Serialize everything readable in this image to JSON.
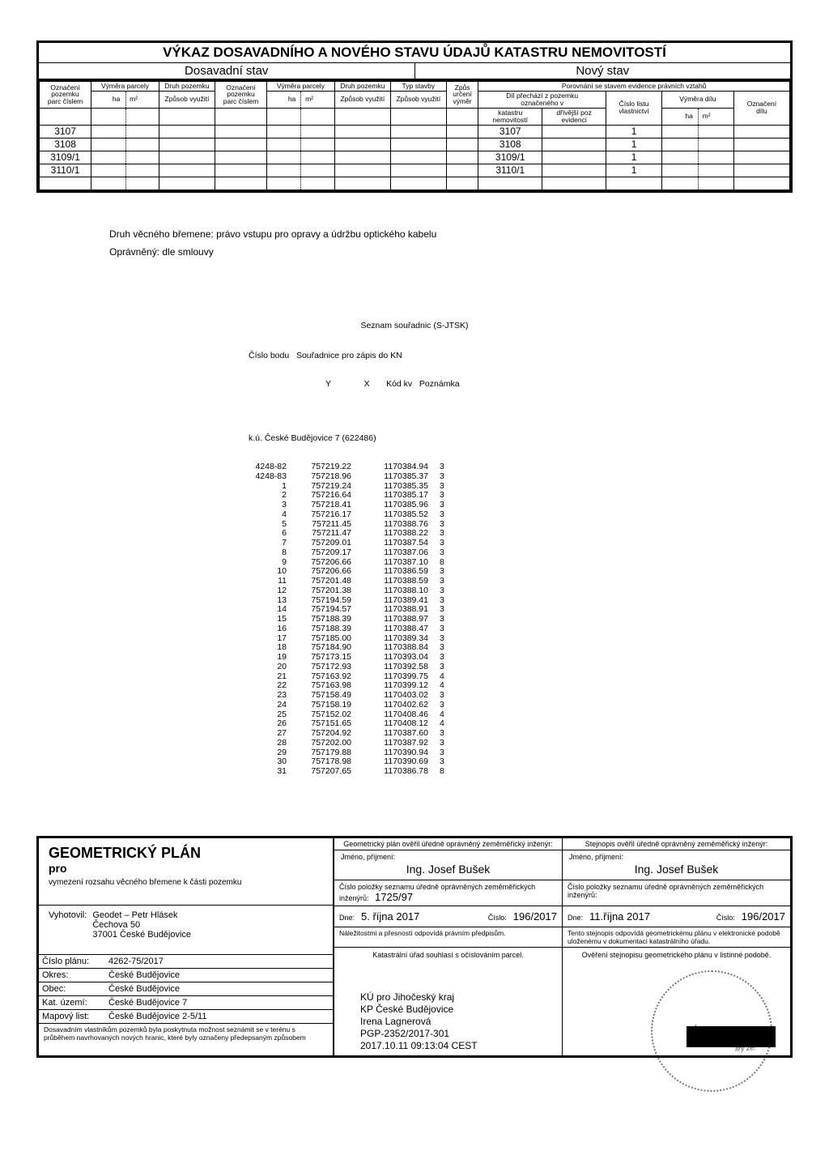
{
  "title": "VÝKAZ DOSAVADNÍHO A NOVÉHO STAVU ÚDAJŮ KATASTRU NEMOVITOSTÍ",
  "state_old": "Dosavadní stav",
  "state_new": "Nový stav",
  "hdr": {
    "oznaceni_pozemku": "Označení\npozemku\nparc číslem",
    "vymera_parcely": "Výměra parcely",
    "druh_pozemku": "Druh pozemku",
    "zpusob_vyuziti": "Způsob využití",
    "typ_stavby": "Typ stavby",
    "zpus_urceni": "Způs\nurčení\nvýměr",
    "porovnani": "Porovnání se stavem evidence právních vztahů",
    "dil_prechazi": "Díl přechází z pozemku\noznačeného v",
    "cislo_listu": "Číslo listu\nvlastnictví",
    "vymera_dilu": "Výměra dílu",
    "oznaceni_dilu": "Označení\ndílu",
    "katastru": "katastru\nnemovitostí",
    "drivejsi": "dřívější poz\nevidenci",
    "ha": "ha",
    "m2": "m²"
  },
  "rows_left": [
    "3107",
    "3108",
    "3109/1",
    "3110/1"
  ],
  "rows_right": [
    {
      "parc": "3107",
      "lv": "1"
    },
    {
      "parc": "3108",
      "lv": "1"
    },
    {
      "parc": "3109/1",
      "lv": "1"
    },
    {
      "parc": "3110/1",
      "lv": "1"
    }
  ],
  "easement1": "Druh věcného břemene:  právo vstupu pro opravy a údržbu optického kabelu",
  "easement2": "Oprávněný:  dle smlouvy",
  "coords_title": "Seznam souřadnic (S-JTSK)",
  "coords_sub": "Číslo bodu   Souřadnice pro zápis do KN",
  "coords_yxk": "Y              X       Kód kv   Poznámka",
  "ku_line": "k.ú. České Budějovice 7 (622486)",
  "coords": [
    [
      "4248-82",
      "757219.22",
      "1170384.94",
      "3"
    ],
    [
      "4248-83",
      "757218.96",
      "1170385.37",
      "3"
    ],
    [
      "1",
      "757219.24",
      "1170385.35",
      "3"
    ],
    [
      "2",
      "757216.64",
      "1170385.17",
      "3"
    ],
    [
      "3",
      "757218.41",
      "1170385.96",
      "3"
    ],
    [
      "4",
      "757216.17",
      "1170385.52",
      "3"
    ],
    [
      "5",
      "757211.45",
      "1170388.76",
      "3"
    ],
    [
      "6",
      "757211.47",
      "1170388.22",
      "3"
    ],
    [
      "7",
      "757209.01",
      "1170387.54",
      "3"
    ],
    [
      "8",
      "757209.17",
      "1170387.06",
      "3"
    ],
    [
      "9",
      "757206.66",
      "1170387.10",
      "8"
    ],
    [
      "10",
      "757206.66",
      "1170386.59",
      "3"
    ],
    [
      "11",
      "757201.48",
      "1170388.59",
      "3"
    ],
    [
      "12",
      "757201.38",
      "1170388.10",
      "3"
    ],
    [
      "13",
      "757194.59",
      "1170389.41",
      "3"
    ],
    [
      "14",
      "757194.57",
      "1170388.91",
      "3"
    ],
    [
      "15",
      "757188.39",
      "1170388.97",
      "3"
    ],
    [
      "16",
      "757188.39",
      "1170388.47",
      "3"
    ],
    [
      "17",
      "757185.00",
      "1170389.34",
      "3"
    ],
    [
      "18",
      "757184.90",
      "1170388.84",
      "3"
    ],
    [
      "19",
      "757173.15",
      "1170393.04",
      "3"
    ],
    [
      "20",
      "757172.93",
      "1170392.58",
      "3"
    ],
    [
      "21",
      "757163.92",
      "1170399.75",
      "4"
    ],
    [
      "22",
      "757163.98",
      "1170399.12",
      "4"
    ],
    [
      "23",
      "757158.49",
      "1170403.02",
      "3"
    ],
    [
      "24",
      "757158.19",
      "1170402.62",
      "3"
    ],
    [
      "25",
      "757152.02",
      "1170408.46",
      "4"
    ],
    [
      "26",
      "757151.65",
      "1170408.12",
      "4"
    ],
    [
      "27",
      "757204.92",
      "1170387.60",
      "3"
    ],
    [
      "28",
      "757202.00",
      "1170387.92",
      "3"
    ],
    [
      "29",
      "757179.88",
      "1170390.94",
      "3"
    ],
    [
      "30",
      "757178.98",
      "1170390.69",
      "3"
    ],
    [
      "31",
      "757207.65",
      "1170386.78",
      "8"
    ]
  ],
  "gp": {
    "title": "GEOMETRICKÝ PLÁN",
    "pro": "pro",
    "purpose": "vymezení rozsahu věcného břemene k části pozemku",
    "vyhot_lab": "Vyhotovil:",
    "vyhot": "Geodet – Petr Hlásek\nČechova 50\n37001 České Budějovice",
    "cislo_planu_lab": "Číslo plánu:",
    "cislo_planu": "4262-75/2017",
    "okres_lab": "Okres:",
    "okres": "České Budějovice",
    "obec_lab": "Obec:",
    "obec": "České Budějovice",
    "kat_lab": "Kat. území:",
    "kat": "České Budějovice 7",
    "map_lab": "Mapový list:",
    "map": "České Budějovice 2-5/11",
    "disclaimer": "Dosavadním vlastníkům pozemků byla poskytnuta možnost seznámit se v terénu s průběhem navrhovaných nových hranic, které byly označeny předepsaným způsobem"
  },
  "right": {
    "head_l": "Geometrický plán ověřil úředně oprávněný zeměměřický inženýr:",
    "head_r": "Stejnopis ověřil úředně oprávněný zeměměřický inženýr:",
    "jmeno": "Jméno, příjmení:",
    "eng_name": "Ing. Josef Bušek",
    "row2a_lab": "Číslo položky seznamu úředně oprávněných zeměměřických inženýrů:",
    "row2a_val": "1725/97",
    "row2b_lab": "Číslo položky seznamu úředně oprávněných zeměměřických inženýrů:",
    "row3a_dne": "Dne:",
    "row3a_date": "5. října 2017",
    "row3a_cislo": "Číslo:",
    "row3a_num": "196/2017",
    "row3b_date": "11.října 2017",
    "row3b_num": "196/2017",
    "row4a": "Náležitostmi a přesností odpovídá právním předpisům.",
    "row4b": "Tento stejnopis odpovídá geometrickému plánu v elektronické podobě uloženému v dokumentaci katastrálního úřadu.",
    "body_l": "Katastrální úřad souhlasí s očíslováním parcel.",
    "body_r": "Ověření stejnopisu geometrického plánu v listinné podobě.",
    "ku1": "KÚ pro Jihočeský kraj",
    "ku2": "KP České Budějovice",
    "ku3": "Irena Lagnerová",
    "ku4": "PGP-2352/2017-301",
    "ku5": "2017.10.11 09:13:04 CEST"
  }
}
